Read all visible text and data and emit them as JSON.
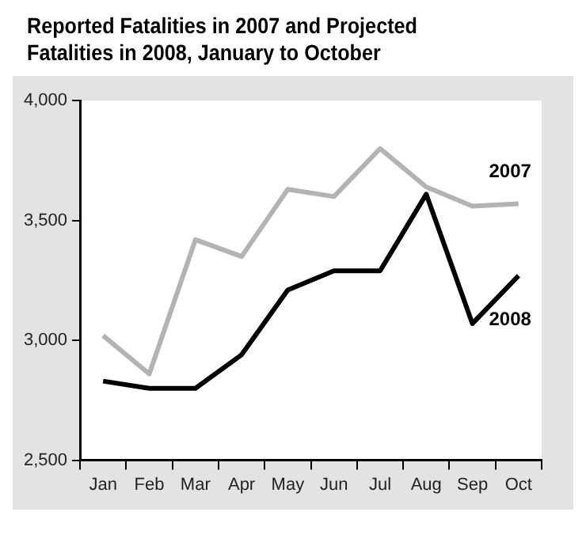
{
  "chart_data": {
    "type": "line",
    "title": "Reported Fatalities in 2007 and Projected Fatalities in 2008, January to October",
    "categories": [
      "Jan",
      "Feb",
      "Mar",
      "Apr",
      "May",
      "Jun",
      "Jul",
      "Aug",
      "Sep",
      "Oct"
    ],
    "series": [
      {
        "name": "2007",
        "color": "#b3b3b3",
        "values": [
          3020,
          2860,
          3420,
          3350,
          3630,
          3600,
          3800,
          3640,
          3560,
          3570
        ]
      },
      {
        "name": "2008",
        "color": "#000000",
        "values": [
          2830,
          2800,
          2800,
          2940,
          3210,
          3290,
          3290,
          3610,
          3070,
          3270
        ]
      }
    ],
    "ylim": [
      2500,
      4000
    ],
    "yticks": [
      {
        "value": 2500,
        "label": "2,500"
      },
      {
        "value": 3000,
        "label": "3,000"
      },
      {
        "value": 3500,
        "label": "3,500"
      },
      {
        "value": 4000,
        "label": "4,000"
      }
    ],
    "grid": false,
    "marker": "none",
    "line_style": "solid"
  }
}
